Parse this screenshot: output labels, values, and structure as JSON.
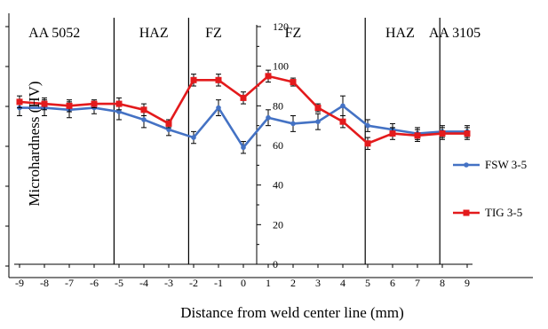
{
  "chart_data": {
    "type": "line",
    "xlabel": "Distance from weld center line (mm)",
    "ylabel": "Microhardness (HV)",
    "x": [
      -9,
      -8,
      -7,
      -6,
      -5,
      -4,
      -3,
      -2,
      -1,
      0,
      1,
      2,
      3,
      4,
      5,
      6,
      7,
      8,
      9
    ],
    "xlim": [
      -9,
      9
    ],
    "ylim": [
      0,
      120
    ],
    "y_ticks": [
      0,
      20,
      40,
      60,
      80,
      100,
      120
    ],
    "grid": false,
    "legend_position": "right",
    "series": [
      {
        "name": "FSW 3-5",
        "color": "#4472C4",
        "values": [
          79,
          79,
          78,
          79,
          77,
          73,
          68,
          64,
          79,
          59,
          74,
          71,
          72,
          80,
          70,
          68,
          66,
          67,
          67
        ],
        "error": [
          4,
          4,
          4,
          3,
          4,
          4,
          3,
          3,
          4,
          3,
          4,
          4,
          4,
          5,
          3,
          3,
          3,
          3,
          3
        ]
      },
      {
        "name": "TIG 3-5",
        "color": "#E31A1C",
        "values": [
          82,
          81,
          80,
          81,
          81,
          78,
          71,
          93,
          93,
          84,
          95,
          92,
          79,
          72,
          61,
          66,
          65,
          66,
          66
        ],
        "error": [
          3,
          3,
          3,
          2,
          3,
          3,
          2,
          3,
          3,
          3,
          3,
          2,
          2,
          3,
          3,
          3,
          3,
          3,
          3
        ]
      }
    ],
    "zone_boundaries": [
      -5.2,
      -2.2,
      4.9,
      7.9
    ],
    "annotations": [
      {
        "text": "AA 5052",
        "x": -7.6
      },
      {
        "text": "HAZ",
        "x": -3.6
      },
      {
        "text": "FZ",
        "x": -1.2
      },
      {
        "text": "FZ",
        "x": 2.0
      },
      {
        "text": "HAZ",
        "x": 6.3
      },
      {
        "text": "AA  3105",
        "x": 8.5
      }
    ]
  }
}
